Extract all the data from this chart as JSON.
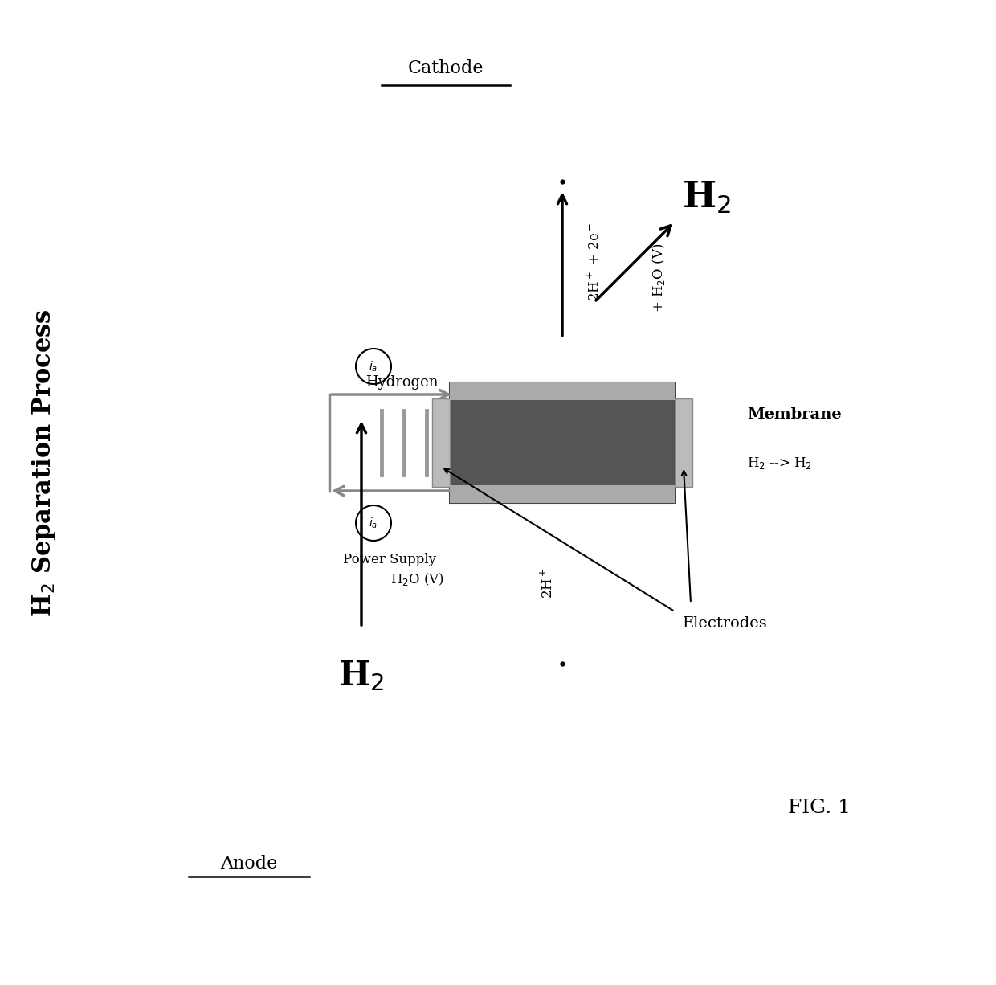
{
  "title": "H$_2$ Separation Process",
  "fig_label": "FIG. 1",
  "background_color": "#ffffff",
  "anode_label": "Anode",
  "cathode_label": "Cathode",
  "power_supply_label": "Power Supply",
  "hydrogen_label": "Hydrogen",
  "membrane_label": "Membrane",
  "electrodes_label": "Electrodes",
  "h2_membrane_label": "H$_2$ --> H$_2$",
  "anode_h2_label": "H$_2$",
  "cathode_h2_label": "H$_2$",
  "anode_reaction": "2H$^+$",
  "cathode_reaction": "2H$^+$ + 2e$^-$",
  "anode_h2o": "H$_2$O (V)",
  "cathode_h2o": "+ H$_2$O (V)"
}
